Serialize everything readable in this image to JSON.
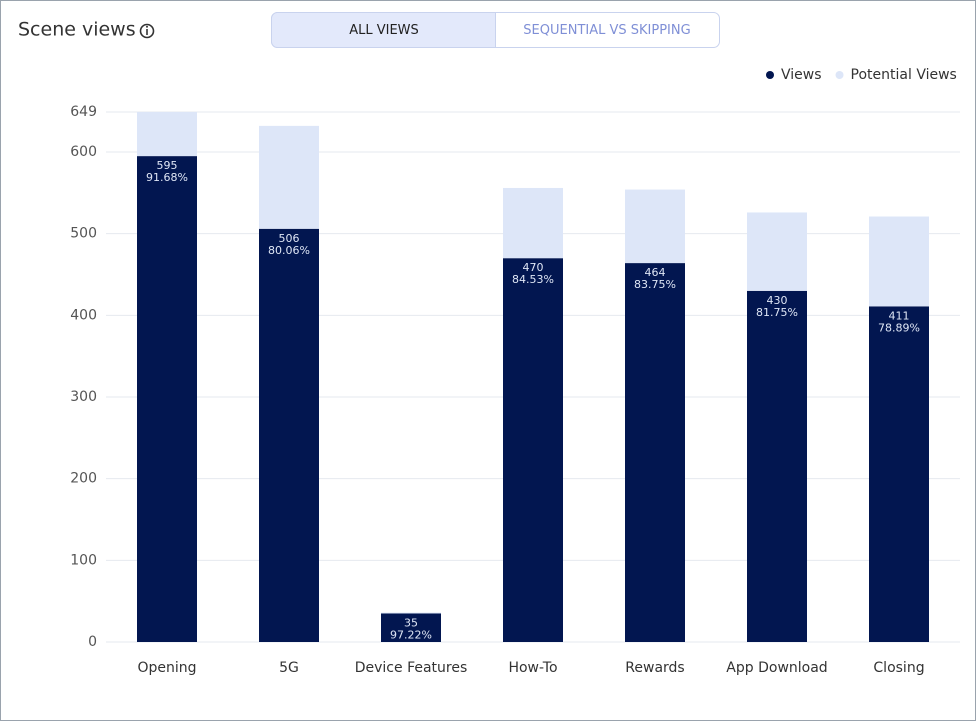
{
  "tabs": [
    "ALL VIEWS",
    "SEQUENTIAL VS SKIPPING"
  ],
  "chart_data": {
    "type": "stacked_bar",
    "title": "Scene views",
    "categories": [
      "Opening",
      "5G",
      "Device Features",
      "How-To",
      "Rewards",
      "App Download",
      "Closing"
    ],
    "series": [
      {
        "name": "Views",
        "color": "#021650",
        "values": [
          595,
          506,
          35,
          470,
          464,
          430,
          411
        ],
        "percent_labels": [
          "91.68%",
          "80.06%",
          "97.22%",
          "84.53%",
          "83.75%",
          "81.75%",
          "78.89%"
        ]
      },
      {
        "name": "Potential Views",
        "color": "#dde6f8",
        "values": [
          54,
          126,
          1,
          86,
          90,
          96,
          110
        ]
      }
    ],
    "ylim": [
      0,
      649
    ],
    "yticks": [
      0,
      100,
      200,
      300,
      400,
      500,
      600,
      649
    ],
    "grid": true,
    "legend": "top-right"
  }
}
